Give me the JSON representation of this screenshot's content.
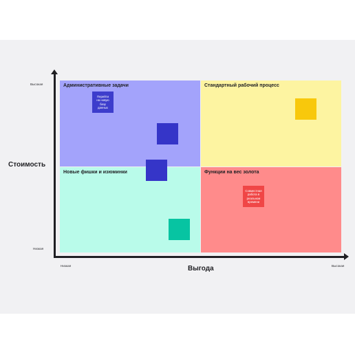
{
  "axes": {
    "y_label": "Стоимость",
    "x_label": "Выгода",
    "y_high": "Высокая",
    "y_low": "Низкая",
    "x_low": "Низкая",
    "x_high": "Высокая"
  },
  "quadrants": {
    "top_left": {
      "title": "Административные задачи",
      "color": "#a3a3fb"
    },
    "top_right": {
      "title": "Стандартный рабочий процесс",
      "color": "#fdf4a1"
    },
    "bottom_left": {
      "title": "Новые фишки и изюминки",
      "color": "#b9fbea"
    },
    "bottom_right": {
      "title": "Функции на вес золота",
      "color": "#ff8b8b"
    }
  },
  "stickies": {
    "migrate_db": {
      "text": "Перейти\nна новую\nбазу\nданных",
      "color": "#3d3dcc"
    },
    "collab_realtime": {
      "text": "Совместная\nработа в\nреальном\nвремени",
      "color": "#f04646"
    },
    "blue_a": {
      "color": "#3535c8"
    },
    "blue_b": {
      "color": "#3535c8"
    },
    "yellow": {
      "color": "#f8c80c"
    },
    "teal": {
      "color": "#07c4a2"
    }
  }
}
